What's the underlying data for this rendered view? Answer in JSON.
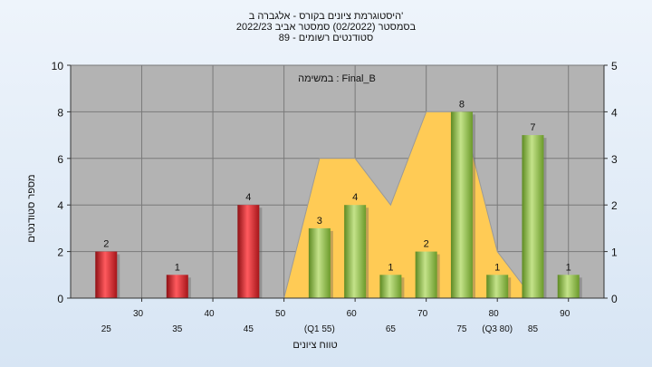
{
  "title_lines": [
    "היסטוגרמת ציונים בקורס - אלגברה ב'",
    "בסמסטר  (02/2022)  סמסטר אביב 2022/23",
    "סטודנטים רשומים - 89"
  ],
  "annotation": "במשימה : Final_B",
  "colors": {
    "plot_bg": "#b3b3b3",
    "grid": "#7a7a7a",
    "bar_fail": "#d9262b",
    "bar_pass": "#8fbf45",
    "area": "#ffcb55",
    "area_edge": "#9a9a9a"
  },
  "chart_data": {
    "type": "bar",
    "title": "היסטוגרמת ציונים בקורס - אלגברה ב'",
    "xlabel": "טווח ציונים",
    "ylabel": "מספר סטודנטים",
    "ylim": [
      0,
      10
    ],
    "y_ticks": [
      0,
      2,
      4,
      6,
      8,
      10
    ],
    "y2lim": [
      0,
      5
    ],
    "y2_ticks": [
      0,
      1,
      2,
      3,
      4,
      5
    ],
    "grid": true,
    "categories": [
      "25",
      "35",
      "45",
      "55",
      "60",
      "65",
      "70",
      "75",
      "80",
      "85",
      "90"
    ],
    "values": [
      2,
      1,
      4,
      3,
      4,
      1,
      2,
      8,
      1,
      7,
      1
    ],
    "bar_x": [
      25,
      35,
      45,
      55,
      60,
      65,
      70,
      75,
      80,
      85,
      90
    ],
    "bar_status": [
      "fail",
      "fail",
      "fail",
      "pass",
      "pass",
      "pass",
      "pass",
      "pass",
      "pass",
      "pass",
      "pass"
    ],
    "x_ticks_upper": [
      "30",
      "40",
      "50",
      "60",
      "70",
      "80",
      "90"
    ],
    "x_ticks_upper_values": [
      30,
      40,
      50,
      60,
      70,
      80,
      90
    ],
    "x_ticks_lower": [
      "25",
      "35",
      "45",
      "(Q1 55)",
      "65",
      "75",
      "(Q3 80)",
      "85"
    ],
    "x_ticks_lower_values": [
      25,
      35,
      45,
      55,
      65,
      75,
      80,
      85
    ],
    "xlim": [
      20,
      95
    ],
    "area_series": {
      "axis": "secondary",
      "x": [
        50,
        55,
        60,
        65,
        70,
        75,
        80,
        85
      ],
      "values": [
        0,
        3,
        3,
        2,
        4,
        4,
        1,
        0
      ]
    }
  }
}
